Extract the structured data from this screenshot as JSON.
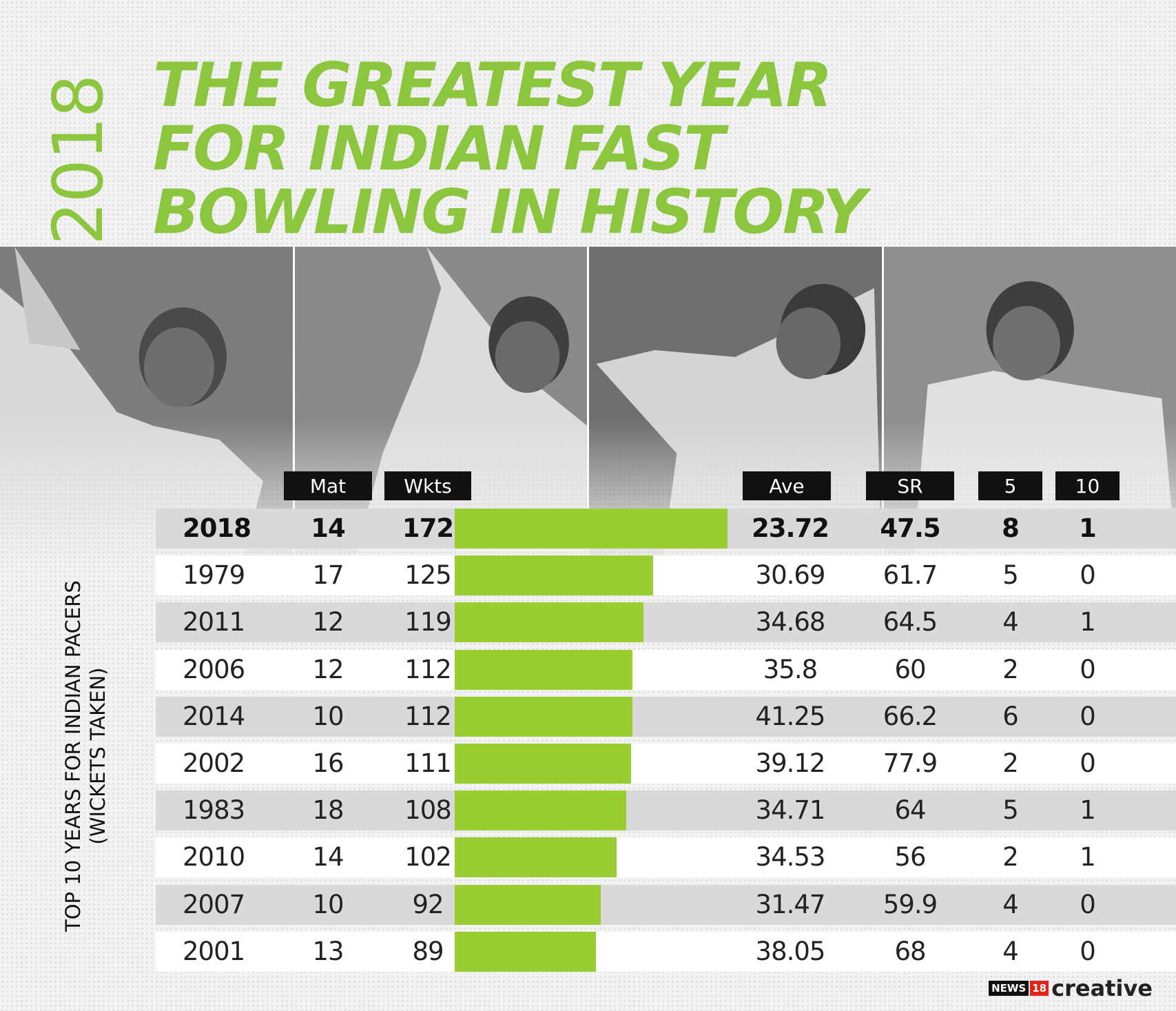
{
  "year_label": "2018",
  "title": {
    "line1": "THE GREATEST YEAR",
    "line2": "FOR INDIAN FAST",
    "line3": "BOWLING IN HISTORY"
  },
  "side_label": {
    "line1": "TOP 10 YEARS FOR INDIAN PACERS",
    "line2": "(WICKETS TAKEN)"
  },
  "colors": {
    "title_green": "#8cc63f",
    "bar_green": "#9acd32",
    "header_black": "#111111",
    "row_shade": "#d9d9d9"
  },
  "photos": [
    "bowler-photo-1",
    "bowler-photo-2",
    "bowler-photo-3",
    "bowler-photo-4"
  ],
  "chart_data": {
    "type": "table",
    "columns": [
      "",
      "Mat",
      "Wkts",
      "",
      "Ave",
      "SR",
      "5",
      "10"
    ],
    "headers": {
      "mat": "Mat",
      "wkts": "Wkts",
      "ave": "Ave",
      "sr": "SR",
      "five": "5",
      "ten": "10"
    },
    "bar_metric": "Wkts",
    "rows": [
      {
        "year": "2018",
        "mat": "14",
        "wkts": "172",
        "ave": "23.72",
        "sr": "47.5",
        "five": "8",
        "ten": "1",
        "highlight": true
      },
      {
        "year": "1979",
        "mat": "17",
        "wkts": "125",
        "ave": "30.69",
        "sr": "61.7",
        "five": "5",
        "ten": "0"
      },
      {
        "year": "2011",
        "mat": "12",
        "wkts": "119",
        "ave": "34.68",
        "sr": "64.5",
        "five": "4",
        "ten": "1"
      },
      {
        "year": "2006",
        "mat": "12",
        "wkts": "112",
        "ave": "35.8",
        "sr": "60",
        "five": "2",
        "ten": "0"
      },
      {
        "year": "2014",
        "mat": "10",
        "wkts": "112",
        "ave": "41.25",
        "sr": "66.2",
        "five": "6",
        "ten": "0"
      },
      {
        "year": "2002",
        "mat": "16",
        "wkts": "111",
        "ave": "39.12",
        "sr": "77.9",
        "five": "2",
        "ten": "0"
      },
      {
        "year": "1983",
        "mat": "18",
        "wkts": "108",
        "ave": "34.71",
        "sr": "64",
        "five": "5",
        "ten": "1"
      },
      {
        "year": "2010",
        "mat": "14",
        "wkts": "102",
        "ave": "34.53",
        "sr": "56",
        "five": "2",
        "ten": "1"
      },
      {
        "year": "2007",
        "mat": "10",
        "wkts": "92",
        "ave": "31.47",
        "sr": "59.9",
        "five": "4",
        "ten": "0"
      },
      {
        "year": "2001",
        "mat": "13",
        "wkts": "89",
        "ave": "38.05",
        "sr": "68",
        "five": "4",
        "ten": "0"
      }
    ]
  },
  "logo": {
    "news": "NEWS",
    "num": "18",
    "word": "creative"
  }
}
